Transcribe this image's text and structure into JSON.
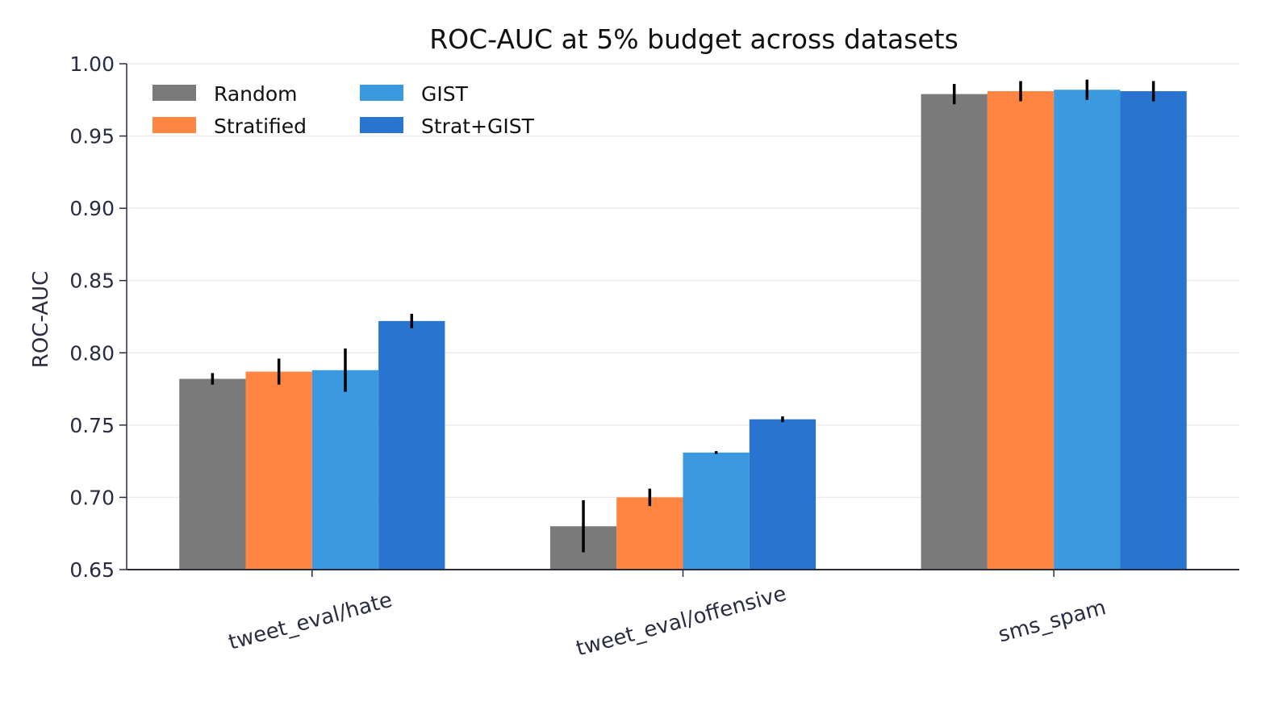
{
  "chart_data": {
    "type": "bar",
    "title": "ROC-AUC at 5% budget across datasets",
    "xlabel": "",
    "ylabel": "ROC-AUC",
    "ylim": [
      0.65,
      1.0
    ],
    "yticks": [
      "0.65",
      "0.70",
      "0.75",
      "0.80",
      "0.85",
      "0.90",
      "0.95",
      "1.00"
    ],
    "categories": [
      "tweet_eval/hate",
      "tweet_eval/offensive",
      "sms_spam"
    ],
    "grid": "horizontal",
    "legend_position": "top-left",
    "series": [
      {
        "name": "Random",
        "color": "#7a7a7a",
        "values": [
          0.782,
          0.68,
          0.979
        ],
        "errors": [
          0.004,
          0.018,
          0.007
        ]
      },
      {
        "name": "Stratified",
        "color": "#ff8541",
        "values": [
          0.787,
          0.7,
          0.981
        ],
        "errors": [
          0.009,
          0.006,
          0.007
        ]
      },
      {
        "name": "GIST",
        "color": "#3a99df",
        "values": [
          0.788,
          0.731,
          0.982
        ],
        "errors": [
          0.015,
          0.001,
          0.007
        ]
      },
      {
        "name": "Strat+GIST",
        "color": "#2874cf",
        "values": [
          0.822,
          0.754,
          0.981
        ],
        "errors": [
          0.005,
          0.002,
          0.007
        ]
      }
    ]
  }
}
